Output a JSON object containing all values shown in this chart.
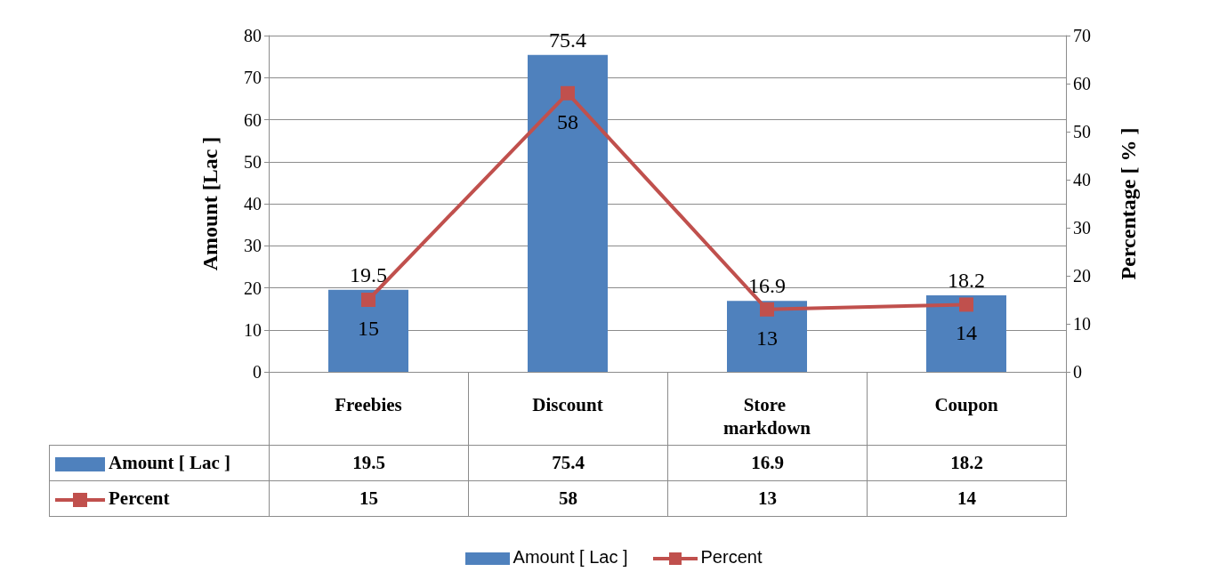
{
  "chart_data": {
    "type": "bar",
    "ylabel": "Amount [Lac ]",
    "y2label": "Percentage [ % ]",
    "categories": [
      "Freebies",
      "Discount",
      "Store markdown",
      "Coupon"
    ],
    "series": [
      {
        "name": "Amount [ Lac ]",
        "color": "#4f81bd",
        "values": [
          19.5,
          75.4,
          16.9,
          18.2
        ],
        "value_labels": [
          "19.5",
          "75.4",
          "16.9",
          "18.2"
        ]
      },
      {
        "name": "Percent",
        "type": "line",
        "axis": "y2",
        "color": "#c0504d",
        "marker": "square",
        "values": [
          15,
          58,
          13,
          14
        ],
        "value_labels": [
          "15",
          "58",
          "13",
          "14"
        ]
      }
    ],
    "ylim": [
      0,
      80
    ],
    "yticks": [
      0,
      10,
      20,
      30,
      40,
      50,
      60,
      70,
      80
    ],
    "y2lim": [
      0,
      70
    ],
    "y2ticks": [
      0,
      10,
      20,
      30,
      40,
      50,
      60,
      70
    ],
    "grid": "y",
    "legend": "bottom",
    "data_labels": true
  }
}
